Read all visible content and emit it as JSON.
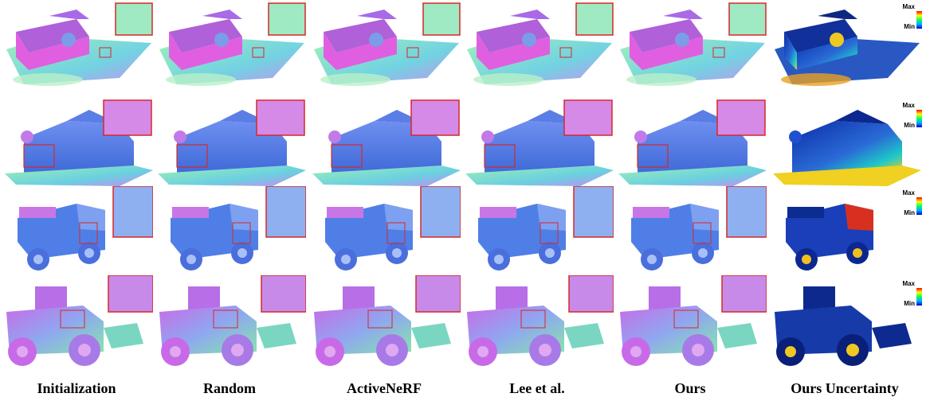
{
  "columns": [
    {
      "label": "Initialization"
    },
    {
      "label": "Random"
    },
    {
      "label": "ActiveNeRF"
    },
    {
      "label": "Lee et al."
    },
    {
      "label": "Ours"
    },
    {
      "label": "Ours Uncertainty"
    }
  ],
  "rows": [
    {
      "scene": "barn-front"
    },
    {
      "scene": "barn-side"
    },
    {
      "scene": "truck"
    },
    {
      "scene": "loader"
    }
  ],
  "colorbar": {
    "max_label": "Max",
    "min_label": "Min"
  },
  "colors": {
    "normal_pink": "#e05fe0",
    "normal_blue": "#4f7fe6",
    "normal_green": "#7fe6b0",
    "inset_border": "#d62828"
  }
}
